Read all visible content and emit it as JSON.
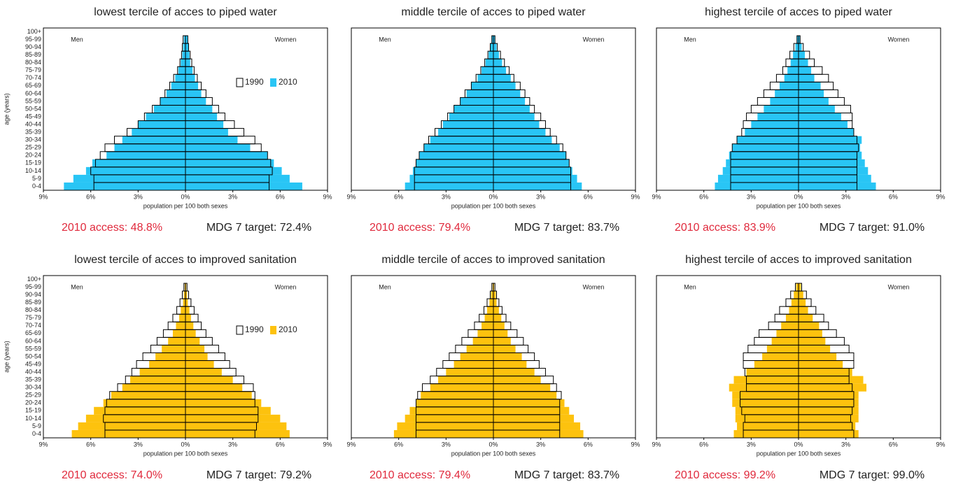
{
  "chart_data": [
    {
      "type": "pyramid",
      "title": "lowest tercile of acces to piped water",
      "ylabel": "age (years)",
      "xlabel": "population per 100 both sexes",
      "categories": [
        "0-4",
        "5-9",
        "10-14",
        "15-19",
        "20-24",
        "25-29",
        "30-34",
        "35-39",
        "40-44",
        "45-49",
        "50-54",
        "55-59",
        "60-64",
        "65-69",
        "70-74",
        "75-79",
        "80-84",
        "85-89",
        "90-94",
        "95-99",
        "100+"
      ],
      "left_label": "Men",
      "right_label": "Women",
      "legend": true,
      "xlim": [
        -9,
        9
      ],
      "xticks": [
        {
          "value": -9,
          "label": "9%"
        },
        {
          "value": -6,
          "label": "6%"
        },
        {
          "value": -3,
          "label": "3%"
        },
        {
          "value": 0,
          "label": "0%"
        },
        {
          "value": 3,
          "label": "3%"
        },
        {
          "value": 6,
          "label": "6%"
        },
        {
          "value": 9,
          "label": "9%"
        }
      ],
      "series": [
        {
          "name": "2010",
          "color": "#29c5f5",
          "filled": true,
          "men": [
            7.7,
            7.1,
            6.3,
            5.9,
            5.0,
            4.5,
            4.0,
            3.4,
            3.0,
            2.5,
            2.0,
            1.6,
            1.2,
            0.9,
            0.65,
            0.45,
            0.3,
            0.2,
            0.15,
            0.1,
            0
          ],
          "women": [
            7.4,
            6.6,
            6.1,
            5.6,
            5.2,
            4.1,
            3.3,
            2.7,
            2.4,
            2.0,
            1.7,
            1.3,
            1.0,
            0.8,
            0.6,
            0.45,
            0.3,
            0.25,
            0.2,
            0.15,
            0
          ]
        },
        {
          "name": "1990",
          "color": "#000000",
          "filled": false,
          "men": [
            5.8,
            5.8,
            6.0,
            5.7,
            5.4,
            5.1,
            4.5,
            3.7,
            3.0,
            2.6,
            2.1,
            1.6,
            1.3,
            1.0,
            0.75,
            0.5,
            0.35,
            0.25,
            0.2,
            0.15,
            0
          ],
          "women": [
            5.3,
            5.3,
            5.5,
            5.4,
            5.2,
            4.8,
            4.4,
            3.7,
            3.1,
            2.5,
            2.1,
            1.7,
            1.3,
            1.0,
            0.75,
            0.55,
            0.4,
            0.3,
            0.2,
            0.15,
            0
          ]
        }
      ],
      "access_label": "2010 access: 48.8%",
      "target_label": "MDG 7 target: 72.4%"
    },
    {
      "type": "pyramid",
      "title": "middle tercile of acces to piped water",
      "xlabel": "population per 100 both sexes",
      "left_label": "Men",
      "right_label": "Women",
      "legend": false,
      "xlim": [
        -9,
        9
      ],
      "xticks": [
        {
          "value": -9,
          "label": "9%"
        },
        {
          "value": -6,
          "label": "6%"
        },
        {
          "value": -3,
          "label": "3%"
        },
        {
          "value": 0,
          "label": "0%"
        },
        {
          "value": 3,
          "label": "3%"
        },
        {
          "value": 6,
          "label": "6%"
        },
        {
          "value": 9,
          "label": "9%"
        }
      ],
      "series": [
        {
          "color": "#29c5f5",
          "filled": true,
          "men": [
            5.6,
            5.3,
            5.1,
            4.9,
            4.7,
            4.4,
            4.0,
            3.5,
            3.2,
            2.8,
            2.5,
            2.1,
            1.7,
            1.4,
            1.0,
            0.75,
            0.5,
            0.3,
            0.2,
            0.1,
            0
          ],
          "women": [
            5.6,
            5.3,
            5.0,
            4.8,
            4.6,
            4.2,
            3.7,
            3.3,
            2.9,
            2.6,
            2.3,
            2.0,
            1.7,
            1.4,
            1.1,
            0.8,
            0.55,
            0.35,
            0.2,
            0.1,
            0
          ]
        },
        {
          "color": "#000000",
          "filled": false,
          "men": [
            5.0,
            5.0,
            5.0,
            4.9,
            4.7,
            4.4,
            4.1,
            3.7,
            3.3,
            2.9,
            2.5,
            2.1,
            1.8,
            1.4,
            1.1,
            0.8,
            0.55,
            0.35,
            0.2,
            0.1,
            0
          ],
          "women": [
            4.9,
            4.9,
            4.9,
            4.8,
            4.6,
            4.4,
            4.0,
            3.6,
            3.3,
            3.0,
            2.6,
            2.3,
            2.0,
            1.7,
            1.3,
            1.0,
            0.7,
            0.45,
            0.25,
            0.1,
            0
          ]
        }
      ],
      "access_label": "2010 access: 79.4%",
      "target_label": "MDG 7 target: 83.7%"
    },
    {
      "type": "pyramid",
      "title": "highest tercile of acces to piped water",
      "xlabel": "population per 100 both sexes",
      "left_label": "Men",
      "right_label": "Women",
      "legend": false,
      "xlim": [
        -9,
        9
      ],
      "xticks": [
        {
          "value": -9,
          "label": "9%"
        },
        {
          "value": -6,
          "label": "6%"
        },
        {
          "value": -3,
          "label": "3%"
        },
        {
          "value": 0,
          "label": "0%"
        },
        {
          "value": 3,
          "label": "3%"
        },
        {
          "value": 6,
          "label": "6%"
        },
        {
          "value": 9,
          "label": "9%"
        }
      ],
      "series": [
        {
          "color": "#29c5f5",
          "filled": true,
          "men": [
            5.3,
            5.1,
            4.8,
            4.6,
            4.4,
            4.2,
            3.9,
            3.4,
            3.0,
            2.6,
            2.2,
            1.8,
            1.5,
            1.2,
            0.9,
            0.7,
            0.5,
            0.35,
            0.2,
            0.1,
            0
          ],
          "women": [
            4.9,
            4.6,
            4.4,
            4.2,
            4.0,
            3.9,
            4.0,
            3.5,
            3.1,
            2.7,
            2.3,
            1.9,
            1.6,
            1.4,
            1.0,
            0.8,
            0.6,
            0.4,
            0.2,
            0.1,
            0
          ]
        },
        {
          "color": "#000000",
          "filled": false,
          "men": [
            4.3,
            4.3,
            4.3,
            4.3,
            4.3,
            4.2,
            3.9,
            3.6,
            3.5,
            3.3,
            3.0,
            2.6,
            2.2,
            1.8,
            1.4,
            1.0,
            0.8,
            0.55,
            0.3,
            0.1,
            0
          ],
          "women": [
            3.7,
            3.7,
            3.7,
            3.7,
            3.7,
            3.8,
            3.7,
            3.5,
            3.4,
            3.4,
            3.3,
            2.9,
            2.5,
            2.2,
            1.9,
            1.5,
            1.0,
            0.7,
            0.3,
            0.1,
            0
          ]
        }
      ],
      "access_label": "2010 access: 83.9%",
      "target_label": "MDG 7 target: 91.0%"
    },
    {
      "type": "pyramid",
      "title": "lowest tercile of acces to improved sanitation",
      "ylabel": "age (years)",
      "xlabel": "population per 100 both sexes",
      "categories": [
        "0-4",
        "5-9",
        "10-14",
        "15-19",
        "20-24",
        "25-29",
        "30-34",
        "35-39",
        "40-44",
        "45-49",
        "50-54",
        "55-59",
        "60-64",
        "65-69",
        "70-74",
        "75-79",
        "80-84",
        "85-89",
        "90-94",
        "95-99",
        "100+"
      ],
      "left_label": "Men",
      "right_label": "Women",
      "legend": true,
      "xlim": [
        -9,
        9
      ],
      "xticks": [
        {
          "value": -9,
          "label": "9%"
        },
        {
          "value": -6,
          "label": "6%"
        },
        {
          "value": -3,
          "label": "3%"
        },
        {
          "value": 0,
          "label": "0%"
        },
        {
          "value": 3,
          "label": "3%"
        },
        {
          "value": 6,
          "label": "6%"
        },
        {
          "value": 9,
          "label": "9%"
        }
      ],
      "series": [
        {
          "name": "2010",
          "color": "#fdc20e",
          "filled": true,
          "men": [
            7.2,
            6.8,
            6.3,
            5.8,
            5.2,
            4.7,
            4.0,
            3.5,
            2.9,
            2.3,
            1.9,
            1.5,
            1.1,
            0.8,
            0.6,
            0.4,
            0.3,
            0.15,
            0.1,
            0.05,
            0
          ],
          "women": [
            6.6,
            6.4,
            6.0,
            5.4,
            4.8,
            4.2,
            3.6,
            3.0,
            2.3,
            1.8,
            1.4,
            1.2,
            0.9,
            0.65,
            0.5,
            0.35,
            0.25,
            0.15,
            0.1,
            0.05,
            0
          ]
        },
        {
          "name": "1990",
          "color": "#000000",
          "filled": false,
          "men": [
            5.1,
            5.1,
            5.2,
            5.1,
            5.0,
            4.8,
            4.3,
            3.8,
            3.4,
            3.1,
            2.7,
            2.2,
            1.8,
            1.4,
            1.1,
            0.8,
            0.55,
            0.35,
            0.2,
            0.1,
            0
          ],
          "women": [
            4.4,
            4.5,
            4.6,
            4.6,
            4.4,
            4.4,
            4.3,
            3.7,
            3.2,
            2.8,
            2.5,
            2.1,
            1.7,
            1.3,
            1.0,
            0.8,
            0.55,
            0.35,
            0.2,
            0.1,
            0
          ]
        }
      ],
      "access_label": "2010 access: 74.0%",
      "target_label": "MDG 7 target: 79.2%"
    },
    {
      "type": "pyramid",
      "title": "middle tercile of acces to improved sanitation",
      "xlabel": "population per 100 both sexes",
      "left_label": "Men",
      "right_label": "Women",
      "legend": false,
      "xlim": [
        -9,
        9
      ],
      "xticks": [
        {
          "value": -9,
          "label": "9%"
        },
        {
          "value": -6,
          "label": "6%"
        },
        {
          "value": -3,
          "label": "3%"
        },
        {
          "value": 0,
          "label": "0%"
        },
        {
          "value": 3,
          "label": "3%"
        },
        {
          "value": 6,
          "label": "6%"
        },
        {
          "value": 9,
          "label": "9%"
        }
      ],
      "series": [
        {
          "color": "#fdc20e",
          "filled": true,
          "men": [
            6.3,
            6.1,
            5.6,
            5.3,
            4.9,
            4.6,
            4.0,
            3.5,
            3.0,
            2.5,
            2.1,
            1.7,
            1.3,
            1.0,
            0.75,
            0.55,
            0.4,
            0.25,
            0.15,
            0.05,
            0
          ],
          "women": [
            5.7,
            5.5,
            5.1,
            4.8,
            4.5,
            4.0,
            3.6,
            3.0,
            2.6,
            2.1,
            1.8,
            1.4,
            1.1,
            0.9,
            0.7,
            0.5,
            0.35,
            0.2,
            0.15,
            0.05,
            0
          ]
        },
        {
          "color": "#000000",
          "filled": false,
          "men": [
            4.9,
            4.9,
            4.9,
            4.9,
            4.9,
            4.8,
            4.5,
            4.0,
            3.6,
            3.2,
            2.8,
            2.4,
            2.0,
            1.6,
            1.2,
            0.9,
            0.6,
            0.4,
            0.2,
            0.1,
            0
          ],
          "women": [
            4.2,
            4.2,
            4.2,
            4.2,
            4.2,
            4.3,
            4.0,
            3.8,
            3.3,
            2.9,
            2.6,
            2.2,
            1.9,
            1.5,
            1.1,
            0.8,
            0.55,
            0.35,
            0.2,
            0.1,
            0
          ]
        }
      ],
      "access_label": "2010 access: 79.4%",
      "target_label": "MDG 7 target: 83.7%"
    },
    {
      "type": "pyramid",
      "title": "highest tercile of acces to improved sanitation",
      "xlabel": "population per 100 both sexes",
      "left_label": "Men",
      "right_label": "Women",
      "legend": false,
      "xlim": [
        -9,
        9
      ],
      "xticks": [
        {
          "value": -9,
          "label": "9%"
        },
        {
          "value": -6,
          "label": "6%"
        },
        {
          "value": -3,
          "label": "3%"
        },
        {
          "value": 0,
          "label": "0%"
        },
        {
          "value": 3,
          "label": "3%"
        },
        {
          "value": 6,
          "label": "6%"
        },
        {
          "value": 9,
          "label": "9%"
        }
      ],
      "series": [
        {
          "color": "#fdc20e",
          "filled": true,
          "men": [
            4.1,
            3.9,
            4.0,
            4.0,
            4.2,
            4.2,
            4.4,
            4.1,
            3.3,
            2.8,
            2.3,
            2.0,
            1.7,
            1.4,
            1.1,
            0.8,
            0.6,
            0.45,
            0.3,
            0.15,
            0
          ],
          "women": [
            3.8,
            3.6,
            3.8,
            3.8,
            3.8,
            3.8,
            4.3,
            4.1,
            3.4,
            2.8,
            2.4,
            2.0,
            1.7,
            1.5,
            1.3,
            0.9,
            0.6,
            0.45,
            0.3,
            0.15,
            0
          ]
        },
        {
          "color": "#000000",
          "filled": false,
          "men": [
            3.5,
            3.5,
            3.4,
            3.6,
            3.7,
            3.7,
            3.3,
            3.3,
            3.4,
            3.5,
            3.5,
            3.2,
            2.8,
            2.5,
            1.9,
            1.5,
            1.2,
            0.8,
            0.5,
            0.2,
            0
          ],
          "women": [
            3.5,
            3.4,
            3.3,
            3.4,
            3.5,
            3.5,
            3.4,
            3.2,
            3.2,
            3.5,
            3.5,
            3.2,
            2.9,
            2.4,
            1.9,
            1.6,
            1.1,
            0.8,
            0.5,
            0.2,
            0
          ]
        }
      ],
      "access_label": "2010 access: 99.2%",
      "target_label": "MDG 7 target: 99.0%"
    }
  ]
}
